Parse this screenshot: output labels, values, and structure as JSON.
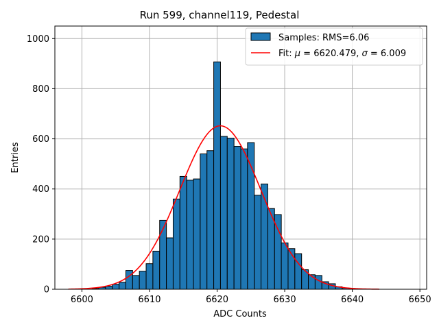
{
  "chart_data": {
    "type": "bar",
    "title": "Run 599, channel119, Pedestal",
    "xlabel": "ADC Counts",
    "ylabel": "Entries",
    "xlim": [
      6596,
      6651
    ],
    "ylim": [
      0,
      1050
    ],
    "xticks": [
      6600,
      6610,
      6620,
      6630,
      6640,
      6650
    ],
    "yticks": [
      0,
      200,
      400,
      600,
      800,
      1000
    ],
    "grid": true,
    "legend_position": "top-right",
    "colors": {
      "bars": "#1f77b4",
      "bar_edge": "#000000",
      "fit": "#ff0000",
      "grid": "#b0b0b0"
    },
    "histogram": {
      "name": "Samples: RMS=6.06",
      "bin_width": 1,
      "bins": [
        {
          "x": 6602,
          "y": 3
        },
        {
          "x": 6603,
          "y": 8
        },
        {
          "x": 6604,
          "y": 12
        },
        {
          "x": 6605,
          "y": 20
        },
        {
          "x": 6606,
          "y": 28
        },
        {
          "x": 6607,
          "y": 75
        },
        {
          "x": 6608,
          "y": 55
        },
        {
          "x": 6609,
          "y": 72
        },
        {
          "x": 6610,
          "y": 102
        },
        {
          "x": 6611,
          "y": 152
        },
        {
          "x": 6612,
          "y": 275
        },
        {
          "x": 6613,
          "y": 205
        },
        {
          "x": 6614,
          "y": 360
        },
        {
          "x": 6615,
          "y": 450
        },
        {
          "x": 6616,
          "y": 435
        },
        {
          "x": 6617,
          "y": 440
        },
        {
          "x": 6618,
          "y": 540
        },
        {
          "x": 6619,
          "y": 553
        },
        {
          "x": 6620,
          "y": 907
        },
        {
          "x": 6621,
          "y": 610
        },
        {
          "x": 6622,
          "y": 603
        },
        {
          "x": 6623,
          "y": 570
        },
        {
          "x": 6624,
          "y": 560
        },
        {
          "x": 6625,
          "y": 585
        },
        {
          "x": 6626,
          "y": 375
        },
        {
          "x": 6627,
          "y": 420
        },
        {
          "x": 6628,
          "y": 322
        },
        {
          "x": 6629,
          "y": 298
        },
        {
          "x": 6630,
          "y": 185
        },
        {
          "x": 6631,
          "y": 162
        },
        {
          "x": 6632,
          "y": 142
        },
        {
          "x": 6633,
          "y": 78
        },
        {
          "x": 6634,
          "y": 58
        },
        {
          "x": 6635,
          "y": 55
        },
        {
          "x": 6636,
          "y": 30
        },
        {
          "x": 6637,
          "y": 22
        },
        {
          "x": 6638,
          "y": 10
        },
        {
          "x": 6639,
          "y": 5
        },
        {
          "x": 6640,
          "y": 2
        }
      ]
    },
    "fit": {
      "name": "Fit: μ = 6620.479, σ = 6.009",
      "label_prefix": "Fit: ",
      "mu_symbol": "μ",
      "mu_text": " = 6620.479, ",
      "sigma_symbol": "σ",
      "sigma_text": " = 6.009",
      "mu": 6620.479,
      "sigma": 6.009,
      "amplitude": 652,
      "x_range": [
        6598,
        6644
      ]
    }
  }
}
